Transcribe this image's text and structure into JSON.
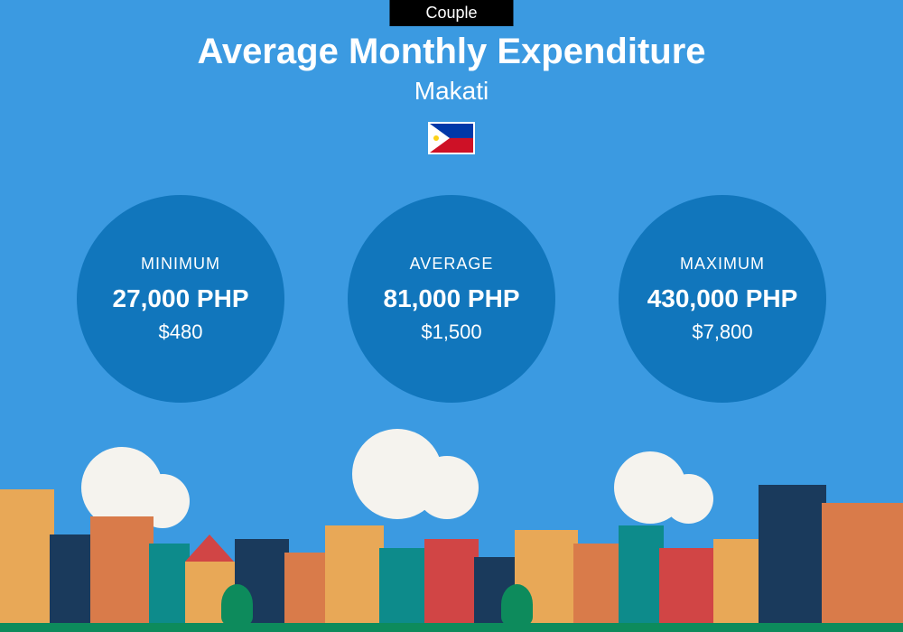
{
  "badge": "Couple",
  "title": "Average Monthly Expenditure",
  "subtitle": "Makati",
  "flag": {
    "colors": {
      "blue": "#0038a8",
      "red": "#ce1126",
      "white": "#ffffff",
      "yellow": "#fcd116"
    }
  },
  "circles": [
    {
      "label": "MINIMUM",
      "value": "27,000 PHP",
      "usd": "$480"
    },
    {
      "label": "AVERAGE",
      "value": "81,000 PHP",
      "usd": "$1,500"
    },
    {
      "label": "MAXIMUM",
      "value": "430,000 PHP",
      "usd": "$7,800"
    }
  ],
  "styling": {
    "background_color": "#3b9ae1",
    "circle_color": "#1176bc",
    "badge_bg": "#000000",
    "text_color": "#ffffff",
    "title_fontsize": 40,
    "subtitle_fontsize": 28,
    "circle_label_fontsize": 18,
    "circle_value_fontsize": 28,
    "circle_usd_fontsize": 22,
    "circle_diameter": 230,
    "cityscape_colors": {
      "orange": "#e8a857",
      "dark_orange": "#d97b4a",
      "navy": "#1a3a5c",
      "teal": "#0d8b8b",
      "red": "#d14545",
      "cream": "#f5f3ee",
      "green": "#0d8b5c"
    }
  }
}
